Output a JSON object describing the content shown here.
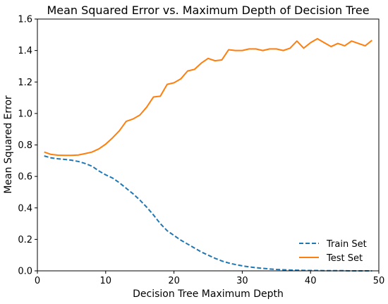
{
  "chart_data": {
    "type": "line",
    "title": "Mean Squared Error vs. Maximum Depth of Decision Tree",
    "xlabel": "Decision Tree Maximum Depth",
    "ylabel": "Mean Squared Error",
    "xlim": [
      0,
      50
    ],
    "ylim": [
      0.0,
      1.6
    ],
    "xticks": [
      0,
      10,
      20,
      30,
      40,
      50
    ],
    "yticks": [
      0.0,
      0.2,
      0.4,
      0.6,
      0.8,
      1.0,
      1.2,
      1.4,
      1.6
    ],
    "ytick_labels": [
      "0.0",
      "0.2",
      "0.4",
      "0.6",
      "0.8",
      "1.0",
      "1.2",
      "1.4",
      "1.6"
    ],
    "grid": false,
    "legend_position": "lower-right",
    "x": [
      1,
      2,
      3,
      4,
      5,
      6,
      7,
      8,
      9,
      10,
      11,
      12,
      13,
      14,
      15,
      16,
      17,
      18,
      19,
      20,
      21,
      22,
      23,
      24,
      25,
      26,
      27,
      28,
      29,
      30,
      31,
      32,
      33,
      34,
      35,
      36,
      37,
      38,
      39,
      40,
      41,
      42,
      43,
      44,
      45,
      46,
      47,
      48,
      49
    ],
    "series": [
      {
        "name": "Train Set",
        "color": "#1f77b4",
        "style": "dashed",
        "values": [
          0.73,
          0.718,
          0.712,
          0.708,
          0.703,
          0.695,
          0.682,
          0.665,
          0.635,
          0.61,
          0.59,
          0.56,
          0.525,
          0.49,
          0.45,
          0.405,
          0.355,
          0.3,
          0.255,
          0.225,
          0.195,
          0.17,
          0.145,
          0.12,
          0.1,
          0.08,
          0.063,
          0.05,
          0.04,
          0.032,
          0.025,
          0.02,
          0.016,
          0.012,
          0.009,
          0.007,
          0.005,
          0.004,
          0.003,
          0.002,
          0.002,
          0.001,
          0.001,
          0.001,
          0.001,
          0.0,
          0.0,
          0.0,
          0.0
        ]
      },
      {
        "name": "Test Set",
        "color": "#ff7f0e",
        "style": "solid",
        "values": [
          0.755,
          0.74,
          0.735,
          0.734,
          0.734,
          0.736,
          0.745,
          0.755,
          0.775,
          0.805,
          0.845,
          0.89,
          0.95,
          0.965,
          0.99,
          1.04,
          1.105,
          1.11,
          1.185,
          1.195,
          1.22,
          1.27,
          1.28,
          1.32,
          1.35,
          1.335,
          1.34,
          1.405,
          1.4,
          1.4,
          1.41,
          1.41,
          1.4,
          1.41,
          1.41,
          1.4,
          1.415,
          1.46,
          1.415,
          1.45,
          1.475,
          1.45,
          1.425,
          1.445,
          1.43,
          1.46,
          1.445,
          1.43,
          1.465
        ]
      }
    ]
  }
}
